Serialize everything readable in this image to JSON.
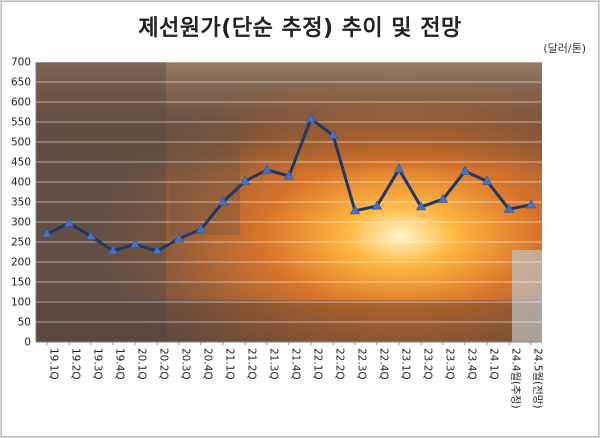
{
  "chart_data": {
    "type": "line",
    "title": "제선원가(단순 추정) 추이 및 전망",
    "unit": "(달러/톤)",
    "xlabel": "",
    "ylabel": "",
    "ylim": [
      0,
      700
    ],
    "ytick_step": 50,
    "grid": true,
    "legend": "none",
    "line_color": "#1f3864",
    "marker_color": "#4472c4",
    "categories": [
      "19.1Q",
      "19.2Q",
      "19.3Q",
      "19.4Q",
      "20.1Q",
      "20.2Q",
      "20.3Q",
      "20.4Q",
      "21.1Q",
      "21.2Q",
      "21.3Q",
      "21.4Q",
      "22.1Q",
      "22.2Q",
      "22.3Q",
      "22.4Q",
      "23.1Q",
      "23.2Q",
      "23.3Q",
      "23.4Q",
      "24.1Q",
      "24.4월(추정)",
      "24.5월(전망)"
    ],
    "series": [
      {
        "values": [
          270,
          297,
          264,
          228,
          244,
          228,
          258,
          282,
          350,
          402,
          430,
          415,
          558,
          517,
          328,
          340,
          432,
          338,
          357,
          427,
          402,
          332,
          343
        ]
      }
    ]
  }
}
